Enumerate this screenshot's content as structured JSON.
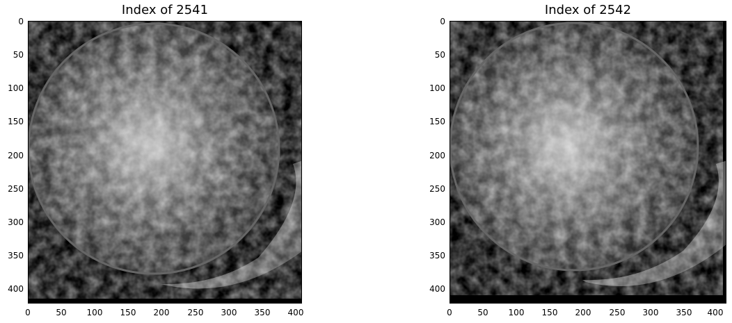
{
  "panels": [
    {
      "title": "Index of 2541",
      "image_desc": "microscopy-grayscale",
      "y_ticks": [
        "0",
        "50",
        "100",
        "150",
        "200",
        "250",
        "300",
        "350",
        "400"
      ],
      "x_ticks": [
        "0",
        "50",
        "100",
        "150",
        "200",
        "250",
        "300",
        "350",
        "400"
      ]
    },
    {
      "title": "Index of 2542",
      "image_desc": "microscopy-grayscale",
      "y_ticks": [
        "0",
        "50",
        "100",
        "150",
        "200",
        "250",
        "300",
        "350",
        "400"
      ],
      "x_ticks": [
        "0",
        "50",
        "100",
        "150",
        "200",
        "250",
        "300",
        "350",
        "400"
      ]
    }
  ],
  "colors": {
    "background": "#000000",
    "frame": "#000000"
  }
}
